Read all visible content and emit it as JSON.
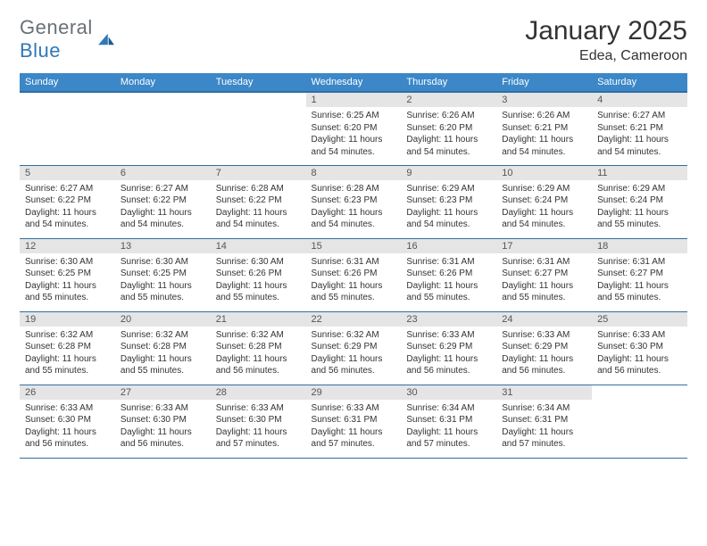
{
  "brand": {
    "part1": "General",
    "part2": "Blue"
  },
  "title": "January 2025",
  "location": "Edea, Cameroon",
  "colors": {
    "header_bg": "#3b87c8",
    "header_border": "#2f6fa3",
    "daynum_bg": "#e5e5e5",
    "text": "#333333",
    "logo_blue": "#2f78b8"
  },
  "weekdays": [
    "Sunday",
    "Monday",
    "Tuesday",
    "Wednesday",
    "Thursday",
    "Friday",
    "Saturday"
  ],
  "weeks": [
    [
      null,
      null,
      null,
      {
        "n": "1",
        "sr": "6:25 AM",
        "ss": "6:20 PM",
        "dl": "11 hours and 54 minutes."
      },
      {
        "n": "2",
        "sr": "6:26 AM",
        "ss": "6:20 PM",
        "dl": "11 hours and 54 minutes."
      },
      {
        "n": "3",
        "sr": "6:26 AM",
        "ss": "6:21 PM",
        "dl": "11 hours and 54 minutes."
      },
      {
        "n": "4",
        "sr": "6:27 AM",
        "ss": "6:21 PM",
        "dl": "11 hours and 54 minutes."
      }
    ],
    [
      {
        "n": "5",
        "sr": "6:27 AM",
        "ss": "6:22 PM",
        "dl": "11 hours and 54 minutes."
      },
      {
        "n": "6",
        "sr": "6:27 AM",
        "ss": "6:22 PM",
        "dl": "11 hours and 54 minutes."
      },
      {
        "n": "7",
        "sr": "6:28 AM",
        "ss": "6:22 PM",
        "dl": "11 hours and 54 minutes."
      },
      {
        "n": "8",
        "sr": "6:28 AM",
        "ss": "6:23 PM",
        "dl": "11 hours and 54 minutes."
      },
      {
        "n": "9",
        "sr": "6:29 AM",
        "ss": "6:23 PM",
        "dl": "11 hours and 54 minutes."
      },
      {
        "n": "10",
        "sr": "6:29 AM",
        "ss": "6:24 PM",
        "dl": "11 hours and 54 minutes."
      },
      {
        "n": "11",
        "sr": "6:29 AM",
        "ss": "6:24 PM",
        "dl": "11 hours and 55 minutes."
      }
    ],
    [
      {
        "n": "12",
        "sr": "6:30 AM",
        "ss": "6:25 PM",
        "dl": "11 hours and 55 minutes."
      },
      {
        "n": "13",
        "sr": "6:30 AM",
        "ss": "6:25 PM",
        "dl": "11 hours and 55 minutes."
      },
      {
        "n": "14",
        "sr": "6:30 AM",
        "ss": "6:26 PM",
        "dl": "11 hours and 55 minutes."
      },
      {
        "n": "15",
        "sr": "6:31 AM",
        "ss": "6:26 PM",
        "dl": "11 hours and 55 minutes."
      },
      {
        "n": "16",
        "sr": "6:31 AM",
        "ss": "6:26 PM",
        "dl": "11 hours and 55 minutes."
      },
      {
        "n": "17",
        "sr": "6:31 AM",
        "ss": "6:27 PM",
        "dl": "11 hours and 55 minutes."
      },
      {
        "n": "18",
        "sr": "6:31 AM",
        "ss": "6:27 PM",
        "dl": "11 hours and 55 minutes."
      }
    ],
    [
      {
        "n": "19",
        "sr": "6:32 AM",
        "ss": "6:28 PM",
        "dl": "11 hours and 55 minutes."
      },
      {
        "n": "20",
        "sr": "6:32 AM",
        "ss": "6:28 PM",
        "dl": "11 hours and 55 minutes."
      },
      {
        "n": "21",
        "sr": "6:32 AM",
        "ss": "6:28 PM",
        "dl": "11 hours and 56 minutes."
      },
      {
        "n": "22",
        "sr": "6:32 AM",
        "ss": "6:29 PM",
        "dl": "11 hours and 56 minutes."
      },
      {
        "n": "23",
        "sr": "6:33 AM",
        "ss": "6:29 PM",
        "dl": "11 hours and 56 minutes."
      },
      {
        "n": "24",
        "sr": "6:33 AM",
        "ss": "6:29 PM",
        "dl": "11 hours and 56 minutes."
      },
      {
        "n": "25",
        "sr": "6:33 AM",
        "ss": "6:30 PM",
        "dl": "11 hours and 56 minutes."
      }
    ],
    [
      {
        "n": "26",
        "sr": "6:33 AM",
        "ss": "6:30 PM",
        "dl": "11 hours and 56 minutes."
      },
      {
        "n": "27",
        "sr": "6:33 AM",
        "ss": "6:30 PM",
        "dl": "11 hours and 56 minutes."
      },
      {
        "n": "28",
        "sr": "6:33 AM",
        "ss": "6:30 PM",
        "dl": "11 hours and 57 minutes."
      },
      {
        "n": "29",
        "sr": "6:33 AM",
        "ss": "6:31 PM",
        "dl": "11 hours and 57 minutes."
      },
      {
        "n": "30",
        "sr": "6:34 AM",
        "ss": "6:31 PM",
        "dl": "11 hours and 57 minutes."
      },
      {
        "n": "31",
        "sr": "6:34 AM",
        "ss": "6:31 PM",
        "dl": "11 hours and 57 minutes."
      },
      null
    ]
  ],
  "labels": {
    "sunrise": "Sunrise:",
    "sunset": "Sunset:",
    "daylight": "Daylight:"
  }
}
